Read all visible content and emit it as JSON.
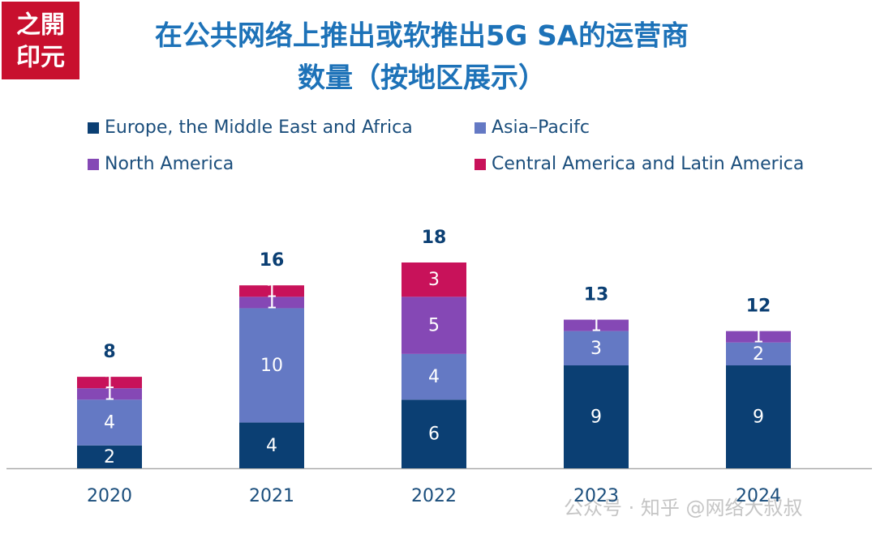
{
  "logo": [
    "之開",
    "印元"
  ],
  "watermark": "公众号 · 知乎 @网络大叔叔",
  "chart_data": {
    "type": "stacked-bar",
    "title": [
      "在公共网络上推出或软推出5G SA的运营商",
      "数量（按地区展示）"
    ],
    "categories": [
      "2020",
      "2021",
      "2022",
      "2023",
      "2024"
    ],
    "series": [
      {
        "name": "Europe, the Middle East and Africa",
        "color": "#0b3f73",
        "values": [
          2,
          4,
          6,
          9,
          9
        ]
      },
      {
        "name": "Asia–Pacifc",
        "color": "#6479c4",
        "values": [
          4,
          10,
          4,
          3,
          2
        ]
      },
      {
        "name": "North America",
        "color": "#8548b5",
        "values": [
          1,
          1,
          5,
          1,
          1
        ]
      },
      {
        "name": "Central America and Latin America",
        "color": "#c8125a",
        "values": [
          1,
          1,
          3,
          null,
          null
        ]
      }
    ],
    "totals": [
      8,
      16,
      18,
      13,
      12
    ]
  }
}
